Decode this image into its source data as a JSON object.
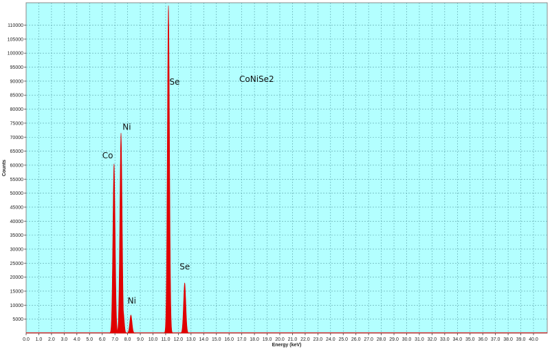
{
  "chart_data": {
    "type": "line",
    "title": "",
    "sample_label": "CoNiSe2",
    "xlabel": "Energy (keV)",
    "ylabel": "Counts",
    "xlim": [
      0,
      40.5
    ],
    "ylim": [
      0,
      118000
    ],
    "x_ticks": [
      "0.0",
      "1.0",
      "2.0",
      "3.0",
      "4.0",
      "5.0",
      "6.0",
      "7.0",
      "8.0",
      "9.0",
      "10.0",
      "11.0",
      "12.0",
      "13.0",
      "14.0",
      "15.0",
      "16.0",
      "17.0",
      "18.0",
      "19.0",
      "20.0",
      "21.0",
      "22.0",
      "23.0",
      "24.0",
      "25.0",
      "26.0",
      "27.0",
      "28.0",
      "29.0",
      "30.0",
      "31.0",
      "32.0",
      "33.0",
      "34.0",
      "35.0",
      "36.0",
      "37.0",
      "38.0",
      "39.0",
      "40.0"
    ],
    "y_ticks": [
      "5000",
      "10000",
      "15000",
      "20000",
      "25000",
      "30000",
      "35000",
      "40000",
      "45000",
      "50000",
      "55000",
      "60000",
      "65000",
      "70000",
      "75000",
      "80000",
      "85000",
      "90000",
      "95000",
      "100000",
      "105000",
      "110000"
    ],
    "grid": true,
    "background": "#b3ffff",
    "fill_color": "#e00000",
    "peaks": [
      {
        "element": "Co",
        "energy": 6.93,
        "counts": 60500,
        "width": 0.09
      },
      {
        "element": "Ni",
        "energy": 7.48,
        "counts": 71500,
        "width": 0.09
      },
      {
        "element": "Co",
        "energy": 7.65,
        "counts": 8000,
        "width": 0.08
      },
      {
        "element": "Ni",
        "energy": 8.26,
        "counts": 6500,
        "width": 0.09
      },
      {
        "element": "Se",
        "energy": 11.22,
        "counts": 117000,
        "width": 0.085
      },
      {
        "element": "Se",
        "energy": 12.5,
        "counts": 18000,
        "width": 0.09
      }
    ],
    "annotations": [
      {
        "text": "Co",
        "energy": 6.0,
        "counts": 62500
      },
      {
        "text": "Ni",
        "energy": 7.6,
        "counts": 72600
      },
      {
        "text": "Ni",
        "energy": 8.0,
        "counts": 10600
      },
      {
        "text": "Se",
        "energy": 11.3,
        "counts": 88800
      },
      {
        "text": "Se",
        "energy": 12.1,
        "counts": 22700
      }
    ]
  }
}
